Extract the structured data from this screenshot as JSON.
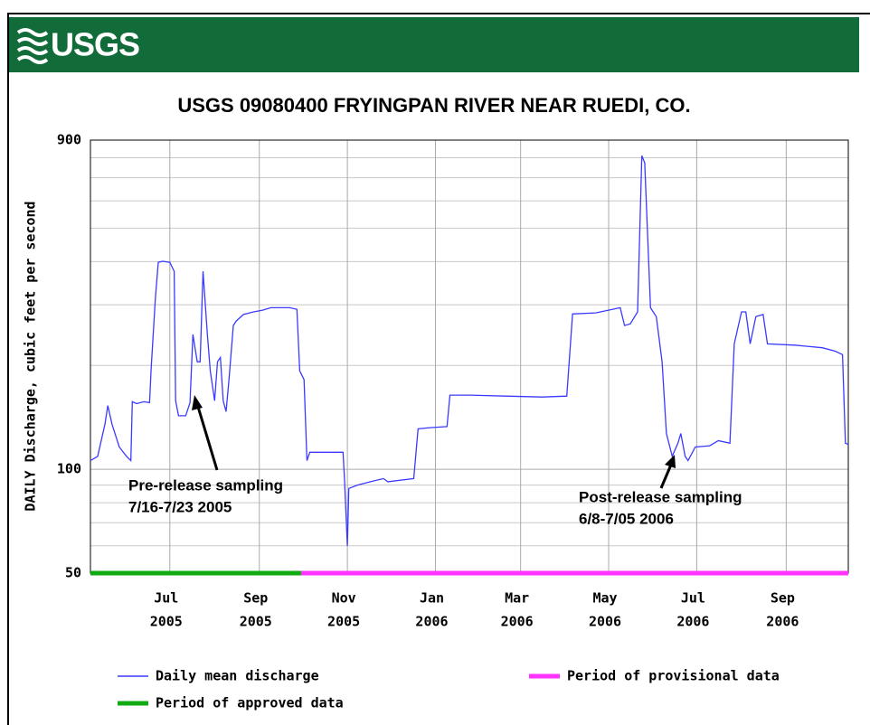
{
  "chart_data": {
    "type": "line",
    "logo": "USGS",
    "title": "USGS 09080400 FRYINGPAN RIVER NEAR RUEDI, CO.",
    "y_label": "DAILY Discharge, cubic feet per second",
    "yscale": "log",
    "grid": true,
    "ylim": [
      50,
      900
    ],
    "yticks": [
      50,
      100,
      900
    ],
    "yminorticks": [
      60,
      70,
      80,
      90,
      200,
      300,
      400,
      500,
      600,
      700,
      800
    ],
    "xlim": [
      "2005-05-07",
      "2006-10-14"
    ],
    "xticks": [
      {
        "value": "2005-07",
        "label": [
          "Jul",
          "2005"
        ]
      },
      {
        "value": "2005-09",
        "label": [
          "Sep",
          "2005"
        ]
      },
      {
        "value": "2005-11",
        "label": [
          "Nov",
          "2005"
        ]
      },
      {
        "value": "2006-01",
        "label": [
          "Jan",
          "2006"
        ]
      },
      {
        "value": "2006-03",
        "label": [
          "Mar",
          "2006"
        ]
      },
      {
        "value": "2006-05",
        "label": [
          "May",
          "2006"
        ]
      },
      {
        "value": "2006-07",
        "label": [
          "Jul",
          "2006"
        ]
      },
      {
        "value": "2006-09",
        "label": [
          "Sep",
          "2006"
        ]
      }
    ],
    "series": [
      {
        "name": "Daily mean discharge",
        "color": "#3a3aff",
        "x": [
          "2005-05-07",
          "2005-05-12",
          "2005-05-17",
          "2005-05-19",
          "2005-05-22",
          "2005-05-27",
          "2005-06-01",
          "2005-06-04",
          "2005-06-05",
          "2005-06-08",
          "2005-06-13",
          "2005-06-17",
          "2005-06-18",
          "2005-06-21",
          "2005-06-23",
          "2005-06-26",
          "2005-07-01",
          "2005-07-04",
          "2005-07-05",
          "2005-07-07",
          "2005-07-12",
          "2005-07-15",
          "2005-07-17",
          "2005-07-20",
          "2005-07-22",
          "2005-07-24",
          "2005-07-27",
          "2005-07-29",
          "2005-08-01",
          "2005-08-03",
          "2005-08-05",
          "2005-08-07",
          "2005-08-09",
          "2005-08-11",
          "2005-08-14",
          "2005-08-16",
          "2005-08-21",
          "2005-08-28",
          "2005-09-03",
          "2005-09-09",
          "2005-09-22",
          "2005-09-27",
          "2005-09-29",
          "2005-10-02",
          "2005-10-04",
          "2005-10-06",
          "2005-10-14",
          "2005-10-23",
          "2005-10-29",
          "2005-10-30",
          "2005-11-01",
          "2005-11-02",
          "2005-11-08",
          "2005-11-17",
          "2005-11-26",
          "2005-11-29",
          "2005-12-17",
          "2005-12-20",
          "2005-12-28",
          "2006-01-09",
          "2006-01-11",
          "2006-01-25",
          "2006-02-19",
          "2006-03-16",
          "2006-04-02",
          "2006-04-06",
          "2006-04-22",
          "2006-05-09",
          "2006-05-12",
          "2006-05-16",
          "2006-05-21",
          "2006-05-24",
          "2006-05-26",
          "2006-05-30",
          "2006-06-03",
          "2006-06-07",
          "2006-06-10",
          "2006-06-14",
          "2006-06-18",
          "2006-06-20",
          "2006-06-23",
          "2006-06-25",
          "2006-06-30",
          "2006-07-10",
          "2006-07-16",
          "2006-07-24",
          "2006-07-27",
          "2006-08-01",
          "2006-08-04",
          "2006-08-07",
          "2006-08-11",
          "2006-08-16",
          "2006-08-19",
          "2006-09-07",
          "2006-09-26",
          "2006-10-05",
          "2006-10-10",
          "2006-10-12",
          "2006-10-14"
        ],
        "values": [
          106,
          109,
          135,
          153,
          135,
          116,
          109,
          106,
          157,
          155,
          157,
          156,
          193,
          313,
          398,
          401,
          398,
          375,
          158,
          143,
          143,
          156,
          246,
          205,
          205,
          375,
          246,
          193,
          158,
          205,
          211,
          158,
          147,
          182,
          261,
          269,
          281,
          286,
          289,
          294,
          294,
          291,
          193,
          182,
          106,
          112,
          112,
          112,
          112,
          94,
          60,
          88,
          90,
          92,
          94,
          92,
          94,
          131,
          132,
          133,
          164,
          164,
          163,
          162,
          163,
          282,
          284,
          294,
          261,
          264,
          286,
          811,
          773,
          294,
          277,
          205,
          127,
          109,
          119,
          127,
          109,
          106,
          116,
          117,
          121,
          119,
          231,
          286,
          286,
          231,
          277,
          281,
          231,
          229,
          225,
          220,
          215,
          119,
          118
        ]
      },
      {
        "name": "Period of provisional data",
        "color": "#ff33ff",
        "role": "period",
        "x": [
          "2005-09-30",
          "2006-10-14"
        ],
        "values": [
          50,
          50
        ]
      },
      {
        "name": "Period of approved data",
        "color": "#11aa11",
        "role": "period",
        "x": [
          "2005-05-07",
          "2005-09-30"
        ],
        "values": [
          50,
          50
        ]
      }
    ],
    "annotations": [
      {
        "text": [
          "Pre-release sampling",
          "7/16-7/23 2005"
        ]
      },
      {
        "text": [
          "Post-release sampling",
          "6/8-7/05 2006"
        ]
      }
    ]
  }
}
